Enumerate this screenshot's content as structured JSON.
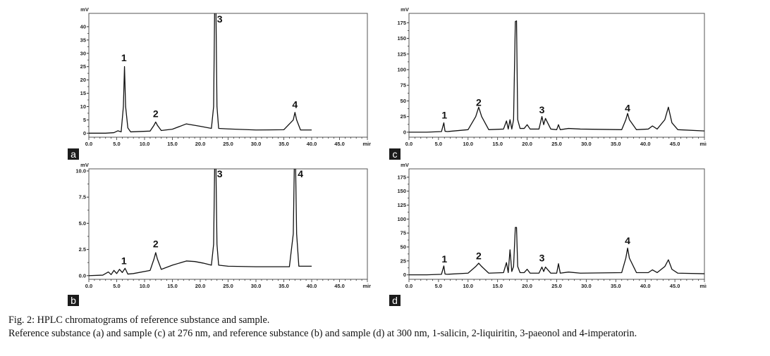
{
  "caption": {
    "title": "Fig. 2: HPLC chromatograms of reference substance and sample.",
    "description": "Reference substance (a) and sample (c) at 276 nm, and reference substance (b) and sample (d) at 300 nm, 1-salicin, 2-liquiritin, 3-paeonol and 4-imperatorin."
  },
  "colors": {
    "trace": "#111111",
    "frame": "#555555",
    "label_bg": "#1c1c1c"
  },
  "chart_data": [
    {
      "id": "a",
      "type": "line",
      "panel_label": "a",
      "ylabel": "mV",
      "xlabel": "min",
      "xlim": [
        0,
        50
      ],
      "ylim": [
        -1.5,
        45
      ],
      "xticks": [
        0.0,
        5.0,
        10.0,
        15.0,
        20.0,
        25.0,
        30.0,
        35.0,
        40.0,
        45.0
      ],
      "xtick_labels": [
        "0.0",
        "5.0",
        "10.0",
        "15.0",
        "20.0",
        "25.0",
        "30.0",
        "35.0",
        "40.0",
        "45.0"
      ],
      "yticks": [
        0,
        5,
        10,
        15,
        20,
        25,
        30,
        35,
        40
      ],
      "ytick_labels": [
        "0",
        "5",
        "10",
        "15",
        "20",
        "25",
        "30",
        "35",
        "40"
      ],
      "annotations": [
        {
          "text": "1",
          "x": 6.3,
          "y": 27.0
        },
        {
          "text": "2",
          "x": 12.0,
          "y": 6.0
        },
        {
          "text": "3",
          "x": 23.5,
          "y": 41.5
        },
        {
          "text": "4",
          "x": 37.0,
          "y": 9.5
        }
      ],
      "x": [
        0.0,
        3.0,
        4.5,
        5.2,
        5.8,
        6.2,
        6.4,
        6.6,
        7.0,
        7.5,
        11.0,
        11.7,
        12.0,
        12.3,
        13.0,
        15.0,
        17.5,
        20.0,
        22.0,
        22.4,
        22.6,
        22.8,
        23.0,
        23.3,
        25.0,
        30.0,
        35.0,
        36.7,
        37.0,
        37.3,
        38.0,
        40.0
      ],
      "y": [
        0.0,
        0.0,
        0.2,
        0.9,
        0.5,
        10.0,
        25.0,
        10.0,
        2.0,
        0.5,
        0.8,
        3.0,
        4.2,
        3.0,
        1.0,
        1.5,
        3.5,
        2.6,
        1.8,
        10.0,
        50.0,
        50.0,
        10.0,
        1.8,
        1.6,
        1.2,
        1.3,
        5.0,
        7.8,
        5.0,
        1.2,
        1.2
      ]
    },
    {
      "id": "b",
      "type": "line",
      "panel_label": "b",
      "ylabel": "mV",
      "xlabel": "min",
      "xlim": [
        0,
        50
      ],
      "ylim": [
        -0.35,
        10.2
      ],
      "xticks": [
        0.0,
        5.0,
        10.0,
        15.0,
        20.0,
        25.0,
        30.0,
        35.0,
        40.0,
        45.0
      ],
      "xtick_labels": [
        "0.0",
        "5.0",
        "10.0",
        "15.0",
        "20.0",
        "25.0",
        "30.0",
        "35.0",
        "40.0",
        "45.0"
      ],
      "yticks": [
        0.0,
        2.5,
        5.0,
        7.5,
        10.0
      ],
      "ytick_labels": [
        "0.0",
        "2.5",
        "5.0",
        "7.5",
        "10.0"
      ],
      "annotations": [
        {
          "text": "1",
          "x": 6.3,
          "y": 1.1
        },
        {
          "text": "2",
          "x": 12.0,
          "y": 2.7
        },
        {
          "text": "3",
          "x": 23.5,
          "y": 9.4
        },
        {
          "text": "4",
          "x": 38.0,
          "y": 9.4
        }
      ],
      "x": [
        0.0,
        2.5,
        3.5,
        4.0,
        4.5,
        5.0,
        5.5,
        6.0,
        6.5,
        7.0,
        8.0,
        11.0,
        11.7,
        12.0,
        12.3,
        13.0,
        15.0,
        17.5,
        19.0,
        20.5,
        22.0,
        22.4,
        22.6,
        22.8,
        23.0,
        23.3,
        25.0,
        30.0,
        36.0,
        36.7,
        36.9,
        37.1,
        37.3,
        37.7,
        40.0
      ],
      "y": [
        0.0,
        0.05,
        0.35,
        0.1,
        0.5,
        0.2,
        0.6,
        0.3,
        0.7,
        0.15,
        0.2,
        0.5,
        1.6,
        2.2,
        1.6,
        0.6,
        1.0,
        1.4,
        1.35,
        1.2,
        1.0,
        3.0,
        11.0,
        11.0,
        3.0,
        1.0,
        0.9,
        0.85,
        0.85,
        4.0,
        11.0,
        11.0,
        4.0,
        0.9,
        0.9
      ]
    },
    {
      "id": "c",
      "type": "line",
      "panel_label": "c",
      "ylabel": "mV",
      "xlabel": "min",
      "xlim": [
        0,
        50
      ],
      "ylim": [
        -8,
        190
      ],
      "xticks": [
        0.0,
        5.0,
        10.0,
        15.0,
        20.0,
        25.0,
        30.0,
        35.0,
        40.0,
        45.0
      ],
      "xtick_labels": [
        "0.0",
        "5.0",
        "10.0",
        "15.0",
        "20.0",
        "25.0",
        "30.0",
        "35.0",
        "40.0",
        "45.0"
      ],
      "yticks": [
        0,
        25,
        50,
        75,
        100,
        125,
        150,
        175
      ],
      "ytick_labels": [
        "0",
        "25",
        "50",
        "75",
        "100",
        "125",
        "150",
        "175"
      ],
      "annotations": [
        {
          "text": "1",
          "x": 6.0,
          "y": 22
        },
        {
          "text": "2",
          "x": 11.8,
          "y": 42
        },
        {
          "text": "3",
          "x": 22.5,
          "y": 30
        },
        {
          "text": "4",
          "x": 37.0,
          "y": 33
        }
      ],
      "x": [
        0.0,
        3.0,
        5.5,
        5.9,
        6.1,
        6.5,
        10.0,
        11.3,
        11.8,
        12.3,
        13.5,
        16.0,
        16.5,
        16.8,
        17.1,
        17.4,
        17.7,
        18.0,
        18.2,
        18.4,
        18.8,
        19.5,
        20.0,
        20.5,
        22.0,
        22.5,
        22.8,
        23.1,
        24.0,
        25.0,
        25.3,
        25.6,
        27.0,
        29.0,
        36.0,
        36.7,
        37.0,
        37.3,
        38.5,
        40.5,
        41.2,
        42.0,
        43.3,
        43.9,
        44.5,
        45.5,
        50.0
      ],
      "y": [
        0.0,
        0.0,
        1.0,
        15.0,
        1.5,
        1.0,
        4.0,
        25.0,
        40.0,
        25.0,
        4.0,
        5.0,
        18.0,
        5.0,
        20.0,
        5.0,
        20.0,
        177.0,
        178.0,
        20.0,
        6.0,
        6.0,
        12.0,
        5.0,
        5.0,
        25.0,
        12.0,
        22.0,
        5.0,
        4.0,
        12.0,
        4.0,
        6.0,
        5.0,
        4.0,
        20.0,
        30.0,
        20.0,
        4.0,
        5.0,
        10.0,
        5.0,
        20.0,
        40.0,
        15.0,
        4.0,
        2.0
      ]
    },
    {
      "id": "d",
      "type": "line",
      "panel_label": "d",
      "ylabel": "mV",
      "xlabel": "min",
      "xlim": [
        0,
        50
      ],
      "ylim": [
        -8,
        190
      ],
      "xticks": [
        0.0,
        5.0,
        10.0,
        15.0,
        20.0,
        25.0,
        30.0,
        35.0,
        40.0,
        45.0
      ],
      "xtick_labels": [
        "0.0",
        "5.0",
        "10.0",
        "15.0",
        "20.0",
        "25.0",
        "30.0",
        "35.0",
        "40.0",
        "45.0"
      ],
      "yticks": [
        0,
        25,
        50,
        75,
        100,
        125,
        150,
        175
      ],
      "ytick_labels": [
        "0",
        "25",
        "50",
        "75",
        "100",
        "125",
        "150",
        "175"
      ],
      "annotations": [
        {
          "text": "1",
          "x": 6.0,
          "y": 22
        },
        {
          "text": "2",
          "x": 11.8,
          "y": 28
        },
        {
          "text": "3",
          "x": 22.5,
          "y": 24
        },
        {
          "text": "4",
          "x": 37.0,
          "y": 55
        }
      ],
      "x": [
        0.0,
        3.0,
        5.5,
        5.9,
        6.1,
        6.5,
        10.0,
        11.3,
        11.8,
        12.3,
        13.5,
        16.0,
        16.5,
        16.8,
        17.1,
        17.4,
        17.7,
        18.0,
        18.2,
        18.4,
        18.8,
        19.5,
        20.0,
        20.5,
        22.0,
        22.5,
        22.8,
        23.1,
        24.0,
        25.0,
        25.3,
        25.6,
        27.0,
        29.0,
        36.0,
        36.7,
        37.0,
        37.3,
        38.5,
        40.5,
        41.2,
        42.0,
        43.3,
        43.9,
        44.5,
        45.5,
        50.0
      ],
      "y": [
        0.0,
        0.0,
        1.0,
        16.0,
        1.5,
        1.0,
        3.0,
        15.0,
        21.0,
        15.0,
        3.0,
        4.0,
        22.0,
        4.0,
        45.0,
        6.0,
        15.0,
        85.0,
        85.0,
        15.0,
        4.0,
        4.0,
        10.0,
        3.0,
        3.0,
        14.0,
        6.0,
        14.0,
        3.0,
        3.0,
        20.0,
        3.0,
        5.0,
        3.0,
        4.0,
        30.0,
        48.0,
        30.0,
        4.0,
        4.0,
        9.0,
        4.0,
        15.0,
        27.0,
        10.0,
        3.0,
        2.0
      ]
    }
  ]
}
